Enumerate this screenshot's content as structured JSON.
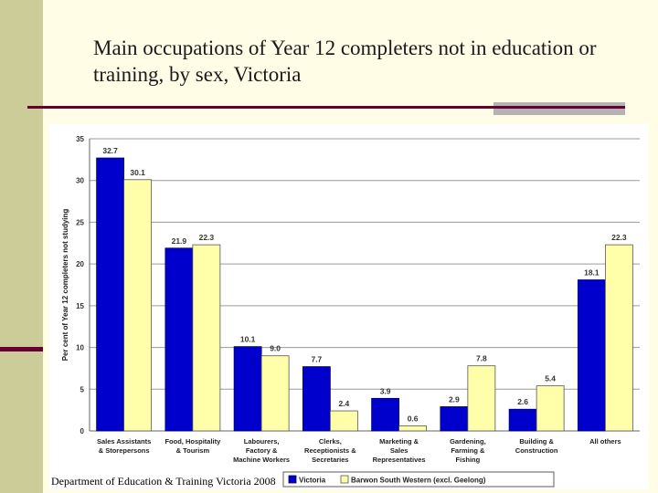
{
  "title": "Main occupations of Year 12 completers not in education or training, by sex, Victoria",
  "footer": "Department of Education & Training Victoria 2008",
  "colors": {
    "victoria": "#0000cc",
    "barwon": "#ffffaa",
    "barwon_stroke": "#555555",
    "accent": "#660033",
    "sidebar": "#cccc99"
  },
  "chart_data": {
    "type": "bar",
    "title": "",
    "xlabel": "",
    "ylabel": "Per cent of Year 12 completers not studying",
    "ylim": [
      0,
      35
    ],
    "yticks": [
      0,
      5,
      10,
      15,
      20,
      25,
      30,
      35
    ],
    "grid": true,
    "legend_position": "bottom",
    "categories": [
      [
        "Sales Assistants",
        "& Storepersons"
      ],
      [
        "Food, Hospitality",
        "& Tourism"
      ],
      [
        "Labourers,",
        "Factory &",
        "Machine Workers"
      ],
      [
        "Clerks,",
        "Receptionists &",
        "Secretaries"
      ],
      [
        "Marketing &",
        "Sales",
        "Representatives"
      ],
      [
        "Gardening,",
        "Farming &",
        "Fishing"
      ],
      [
        "Building &",
        "Construction"
      ],
      [
        "All others"
      ]
    ],
    "series": [
      {
        "name": "Victoria",
        "values": [
          32.7,
          21.9,
          10.1,
          7.7,
          3.9,
          2.9,
          2.6,
          18.1
        ]
      },
      {
        "name": "Barwon South Western (excl. Geelong)",
        "values": [
          30.1,
          22.3,
          9.0,
          2.4,
          0.6,
          7.8,
          5.4,
          22.3
        ]
      }
    ]
  }
}
